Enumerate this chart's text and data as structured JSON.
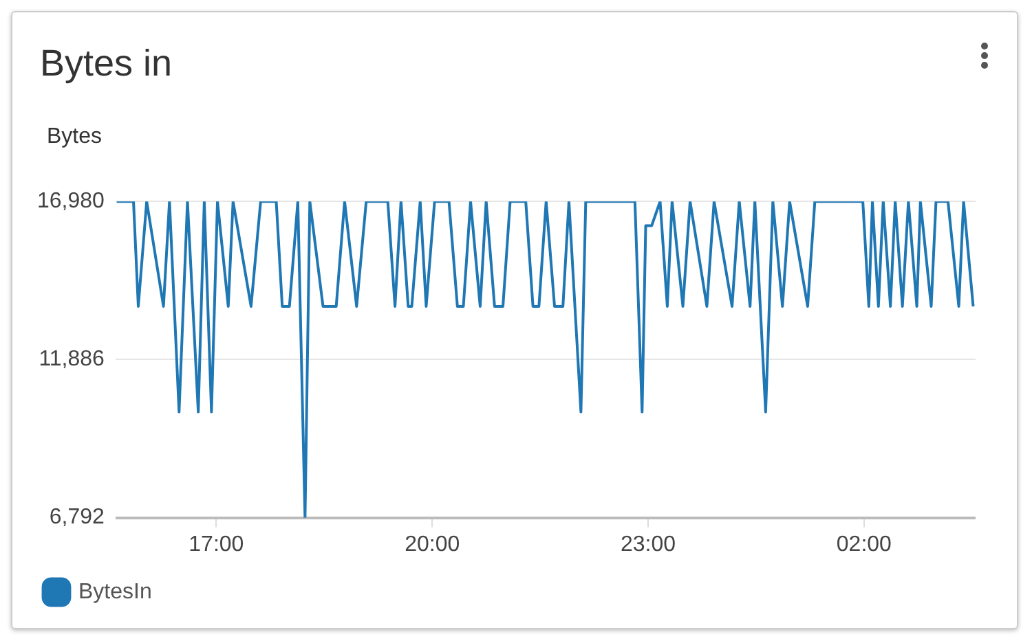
{
  "chart_data": {
    "type": "line",
    "title": "Bytes in",
    "ylabel": "Bytes",
    "x": [
      "--01-01T15:37",
      "--01-01T15:51",
      "--01-01T15:55",
      "--01-01T16:02",
      "--01-01T16:16",
      "--01-01T16:21",
      "--01-01T16:29",
      "--01-01T16:36",
      "--01-01T16:45",
      "--01-01T16:50",
      "--01-01T16:56",
      "--01-01T17:01",
      "--01-01T17:10",
      "--01-01T17:14",
      "--01-01T17:29",
      "--01-01T17:37",
      "--01-01T17:50",
      "--01-01T17:55",
      "--01-01T18:01",
      "--01-01T18:08",
      "--01-01T18:14",
      "--01-01T18:18",
      "--01-01T18:29",
      "--01-01T18:40",
      "--01-01T18:47",
      "--01-01T18:57",
      "--01-01T19:05",
      "--01-01T19:23",
      "--01-01T19:29",
      "--01-01T19:34",
      "--01-01T19:40",
      "--01-01T19:43",
      "--01-01T19:50",
      "--01-01T19:55",
      "--01-01T20:02",
      "--01-01T20:14",
      "--01-01T20:21",
      "--01-01T20:26",
      "--01-01T20:32",
      "--01-01T20:40",
      "--01-01T20:45",
      "--01-01T20:52",
      "--01-01T20:59",
      "--01-01T21:05",
      "--01-01T21:18",
      "--01-01T21:24",
      "--01-01T21:29",
      "--01-01T21:35",
      "--01-01T21:42",
      "--01-01T21:49",
      "--01-01T21:54",
      "--01-01T22:04",
      "--01-01T22:08",
      "--01-01T22:49",
      "--01-01T22:55",
      "--01-01T22:58",
      "--01-01T23:03",
      "--01-01T23:10",
      "--01-01T23:16",
      "--01-01T23:20",
      "--01-01T23:29",
      "--01-01T23:35",
      "--01-01T23:49",
      "--01-01T23:55",
      "--01-02T00:10",
      "--01-02T00:16",
      "--01-02T00:25",
      "--01-02T00:29",
      "--01-02T00:38",
      "--01-02T00:44",
      "--01-02T00:52",
      "--01-02T00:58",
      "--01-02T01:13",
      "--01-02T01:19",
      "--01-02T01:59",
      "--01-02T02:04",
      "--01-02T02:07",
      "--01-02T02:12",
      "--01-02T02:16",
      "--01-02T02:22",
      "--01-02T02:26",
      "--01-02T02:32",
      "--01-02T02:37",
      "--01-02T02:44",
      "--01-02T02:47",
      "--01-02T02:56",
      "--01-02T03:00",
      "--01-02T03:10",
      "--01-02T03:19",
      "--01-02T03:23",
      "--01-02T03:31"
    ],
    "series": [
      {
        "name": "BytesIn",
        "color": "#1f77b4",
        "values": [
          16980,
          16980,
          13600,
          16980,
          13600,
          16980,
          10200,
          16980,
          10200,
          16980,
          10200,
          16980,
          13600,
          16980,
          13600,
          16980,
          16980,
          13600,
          13600,
          16980,
          6792,
          16980,
          13600,
          13600,
          16980,
          13600,
          16980,
          16980,
          13600,
          16980,
          13600,
          13600,
          16980,
          13600,
          16980,
          16980,
          13600,
          13600,
          16980,
          13600,
          16980,
          13600,
          13600,
          16980,
          16980,
          13600,
          13600,
          16980,
          13600,
          13600,
          16980,
          10200,
          16980,
          16980,
          10200,
          16200,
          16200,
          16980,
          13600,
          16980,
          13600,
          16980,
          13600,
          16980,
          13600,
          16980,
          13600,
          16980,
          10200,
          16980,
          13600,
          16980,
          13600,
          16980,
          16980,
          13600,
          16980,
          13600,
          16980,
          13600,
          16980,
          13600,
          16980,
          13600,
          16980,
          13600,
          16980,
          16980,
          13600,
          16980,
          13600
        ]
      }
    ],
    "xlim": [
      "--01-01T15:36",
      "--01-02T03:33"
    ],
    "xticks": [
      {
        "value": "--01-01T17:00",
        "label": "17:00"
      },
      {
        "value": "--01-01T20:00",
        "label": "20:00"
      },
      {
        "value": "--01-01T23:00",
        "label": "23:00"
      },
      {
        "value": "--01-02T02:00",
        "label": "02:00"
      }
    ],
    "ylim": [
      6792,
      16980
    ],
    "yticks": [
      {
        "value": 6792,
        "label": "6,792"
      },
      {
        "value": 11886,
        "label": "11,886"
      },
      {
        "value": 16980,
        "label": "16,980"
      }
    ],
    "grid": "y",
    "legend": "bottom left",
    "marker": "none",
    "line_style": "solid"
  }
}
